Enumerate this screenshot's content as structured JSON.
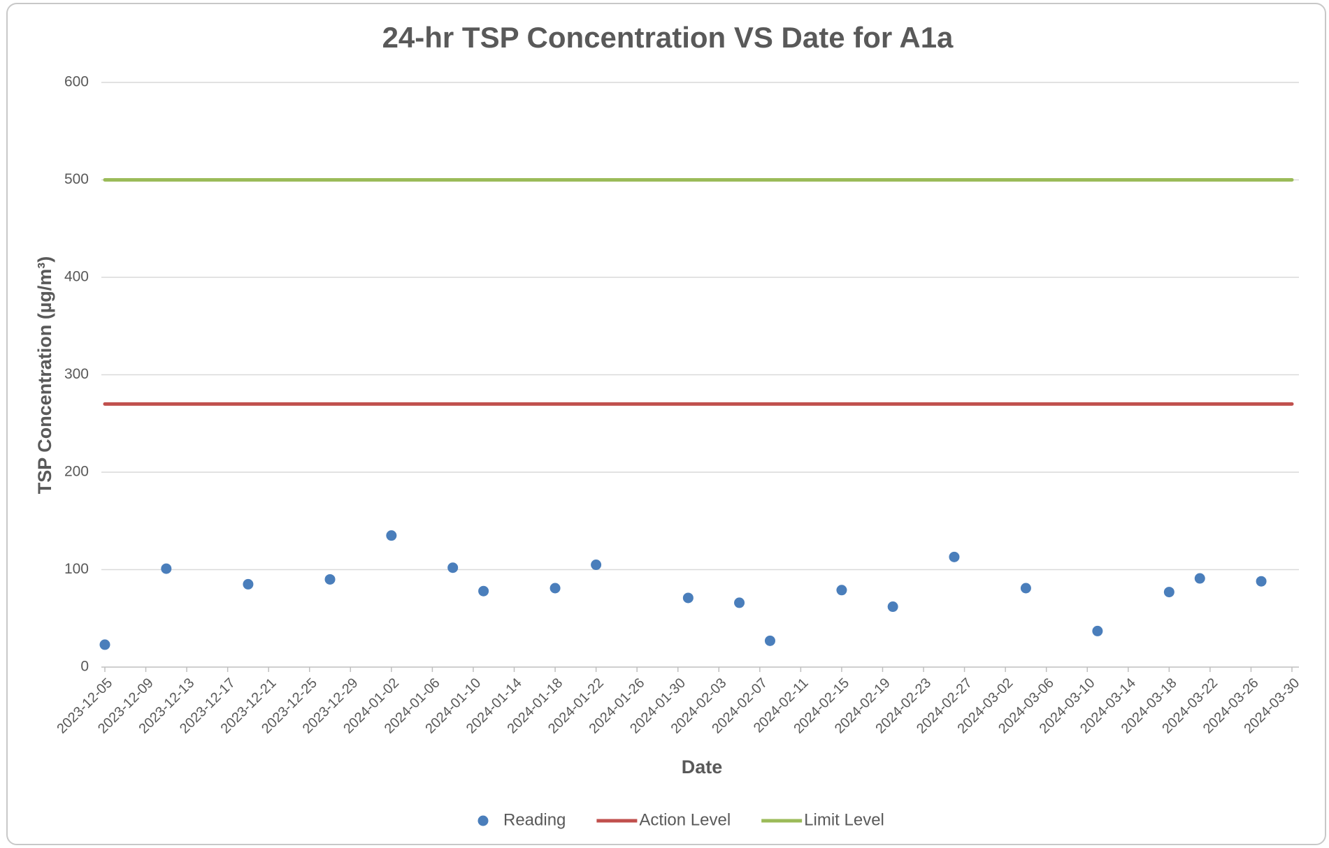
{
  "chart_data": {
    "type": "scatter",
    "title": "24-hr TSP Concentration VS Date for A1a",
    "x_label": "Date",
    "y_label": "TSP Concentration (µg/m³)",
    "xlim": [
      "2023-12-05",
      "2024-03-30"
    ],
    "xticks": [
      "2023-12-05",
      "2023-12-09",
      "2023-12-13",
      "2023-12-17",
      "2023-12-21",
      "2023-12-25",
      "2023-12-29",
      "2024-01-02",
      "2024-01-06",
      "2024-01-10",
      "2024-01-14",
      "2024-01-18",
      "2024-01-22",
      "2024-01-26",
      "2024-01-30",
      "2024-02-03",
      "2024-02-07",
      "2024-02-11",
      "2024-02-15",
      "2024-02-19",
      "2024-02-23",
      "2024-02-27",
      "2024-03-02",
      "2024-03-06",
      "2024-03-10",
      "2024-03-14",
      "2024-03-18",
      "2024-03-22",
      "2024-03-26",
      "2024-03-30"
    ],
    "ylim": [
      0,
      600
    ],
    "yticks": [
      0,
      100,
      200,
      300,
      400,
      500,
      600
    ],
    "grid": true,
    "legend": "bottom",
    "series": [
      {
        "name": "Reading",
        "type": "scatter",
        "color": "#4a7ebb",
        "x": [
          "2023-12-05",
          "2023-12-11",
          "2023-12-19",
          "2023-12-27",
          "2024-01-02",
          "2024-01-08",
          "2024-01-11",
          "2024-01-18",
          "2024-01-22",
          "2024-01-31",
          "2024-02-05",
          "2024-02-08",
          "2024-02-15",
          "2024-02-20",
          "2024-02-26",
          "2024-03-04",
          "2024-03-11",
          "2024-03-18",
          "2024-03-21",
          "2024-03-27"
        ],
        "values": [
          23,
          101,
          85,
          90,
          135,
          102,
          78,
          81,
          105,
          71,
          66,
          27,
          79,
          62,
          113,
          81,
          37,
          77,
          91,
          88
        ]
      },
      {
        "name": "Action Level",
        "type": "line",
        "color": "#c0504d",
        "x": [
          "2023-12-05",
          "2024-03-30"
        ],
        "values": [
          270,
          270
        ]
      },
      {
        "name": "Limit Level",
        "type": "line",
        "color": "#9bbb59",
        "x": [
          "2023-12-05",
          "2024-03-30"
        ],
        "values": [
          500,
          500
        ]
      }
    ]
  }
}
